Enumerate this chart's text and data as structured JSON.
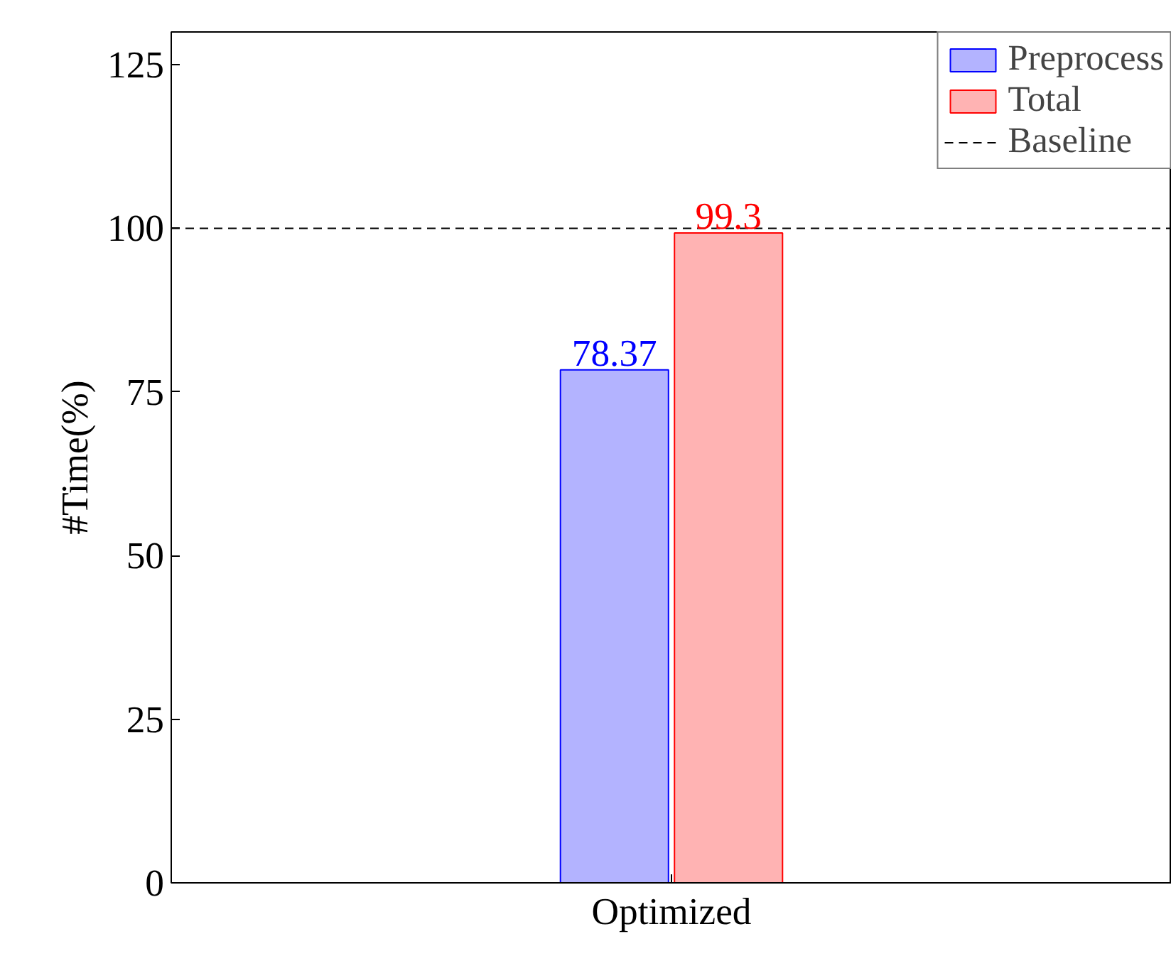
{
  "chart_data": {
    "type": "bar",
    "ylabel": "#Time(%)",
    "categories": [
      "Optimized"
    ],
    "series": [
      {
        "name": "Preprocess",
        "color": "#b3b3ff",
        "values": [
          78.37
        ]
      },
      {
        "name": "Total",
        "color": "#ffb3b3",
        "values": [
          99.3
        ]
      }
    ],
    "ylim": [
      0,
      130
    ],
    "yticks": [
      0,
      25,
      50,
      75,
      100,
      125
    ],
    "ref_lines": [
      {
        "axis": "y",
        "value": 100,
        "label": "Baseline",
        "color": "#000000",
        "line_style": "dashed"
      }
    ],
    "data_labels": true,
    "legend": "top right",
    "grid": false
  }
}
